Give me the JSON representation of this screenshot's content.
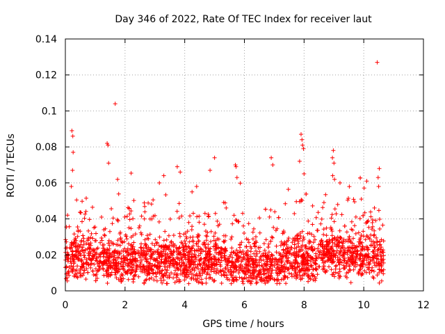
{
  "chart_data": {
    "type": "scatter",
    "title": "Day 346 of 2022, Rate Of TEC Index for receiver laut",
    "xlabel": "GPS time / hours",
    "ylabel": "ROTI / TECUs",
    "xlim": [
      0,
      12
    ],
    "ylim": [
      0,
      0.14
    ],
    "x_ticks": [
      0,
      2,
      4,
      6,
      8,
      10,
      12
    ],
    "x_tick_labels": [
      "0",
      "2",
      "4",
      "6",
      "8",
      "10",
      "12"
    ],
    "y_ticks": [
      0,
      0.02,
      0.04,
      0.06,
      0.08,
      0.1,
      0.12,
      0.14
    ],
    "y_tick_labels": [
      "0",
      "0.02",
      "0.04",
      "0.06",
      "0.08",
      "0.1",
      "0.12",
      "0.14"
    ],
    "grid": true,
    "marker": "+",
    "color": "#ff0000",
    "series": [
      {
        "name": "ROTI",
        "data_range_hours": [
          0,
          10.7
        ],
        "baseline_mean": 0.017,
        "notable_points": [
          {
            "x": 0.22,
            "y": 0.089
          },
          {
            "x": 0.25,
            "y": 0.086
          },
          {
            "x": 0.26,
            "y": 0.077
          },
          {
            "x": 0.24,
            "y": 0.067
          },
          {
            "x": 0.2,
            "y": 0.058
          },
          {
            "x": 1.4,
            "y": 0.082
          },
          {
            "x": 1.43,
            "y": 0.081
          },
          {
            "x": 1.45,
            "y": 0.071
          },
          {
            "x": 1.67,
            "y": 0.104
          },
          {
            "x": 1.75,
            "y": 0.062
          },
          {
            "x": 3.15,
            "y": 0.06
          },
          {
            "x": 3.3,
            "y": 0.064
          },
          {
            "x": 3.75,
            "y": 0.069
          },
          {
            "x": 3.85,
            "y": 0.066
          },
          {
            "x": 4.4,
            "y": 0.058
          },
          {
            "x": 4.85,
            "y": 0.067
          },
          {
            "x": 5.0,
            "y": 0.074
          },
          {
            "x": 5.7,
            "y": 0.07
          },
          {
            "x": 5.72,
            "y": 0.069
          },
          {
            "x": 5.75,
            "y": 0.063
          },
          {
            "x": 6.9,
            "y": 0.074
          },
          {
            "x": 6.95,
            "y": 0.07
          },
          {
            "x": 7.9,
            "y": 0.087
          },
          {
            "x": 7.93,
            "y": 0.084
          },
          {
            "x": 7.95,
            "y": 0.081
          },
          {
            "x": 7.98,
            "y": 0.079
          },
          {
            "x": 7.85,
            "y": 0.072
          },
          {
            "x": 8.0,
            "y": 0.065
          },
          {
            "x": 8.98,
            "y": 0.078
          },
          {
            "x": 8.95,
            "y": 0.074
          },
          {
            "x": 9.0,
            "y": 0.071
          },
          {
            "x": 8.96,
            "y": 0.064
          },
          {
            "x": 9.02,
            "y": 0.062
          },
          {
            "x": 10.1,
            "y": 0.061
          },
          {
            "x": 10.45,
            "y": 0.127
          },
          {
            "x": 10.52,
            "y": 0.068
          },
          {
            "x": 10.48,
            "y": 0.063
          },
          {
            "x": 10.5,
            "y": 0.058
          }
        ]
      }
    ]
  }
}
